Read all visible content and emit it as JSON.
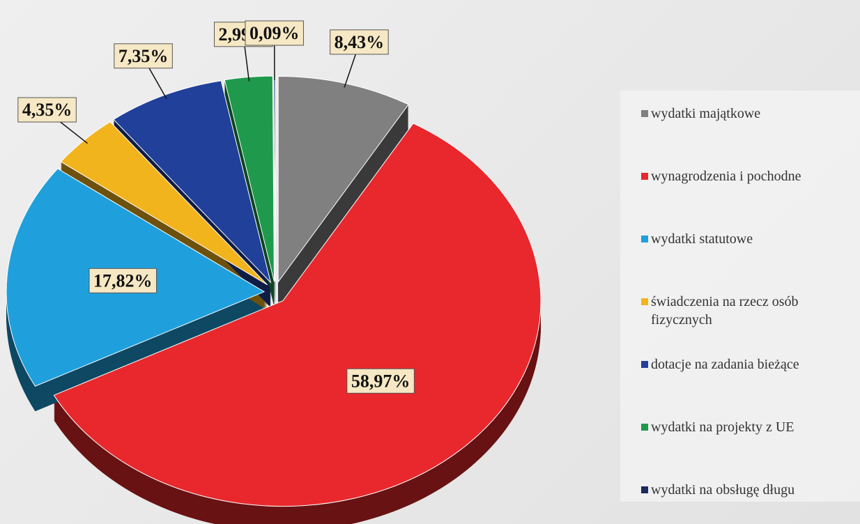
{
  "chart_data": {
    "type": "pie",
    "categories": [
      "wydatki majątkowe",
      "wynagrodzenia i pochodne",
      "wydatki statutowe",
      "świadczenia na rzecz osób fizycznych",
      "dotacje na zadania bieżące",
      "wydatki na projekty z UE",
      "wydatki na obsługę długu"
    ],
    "values": [
      8.43,
      58.97,
      17.82,
      4.35,
      7.35,
      2.99,
      0.09
    ],
    "value_labels": [
      "8,43%",
      "58,97%",
      "17,82%",
      "4,35%",
      "7,35%",
      "2,99%",
      "0,09%"
    ],
    "colors": [
      "#808080",
      "#e8282c",
      "#1fa0dc",
      "#f2b41c",
      "#21409a",
      "#1f9a4c",
      "#1b2b60"
    ],
    "legend": "right"
  }
}
